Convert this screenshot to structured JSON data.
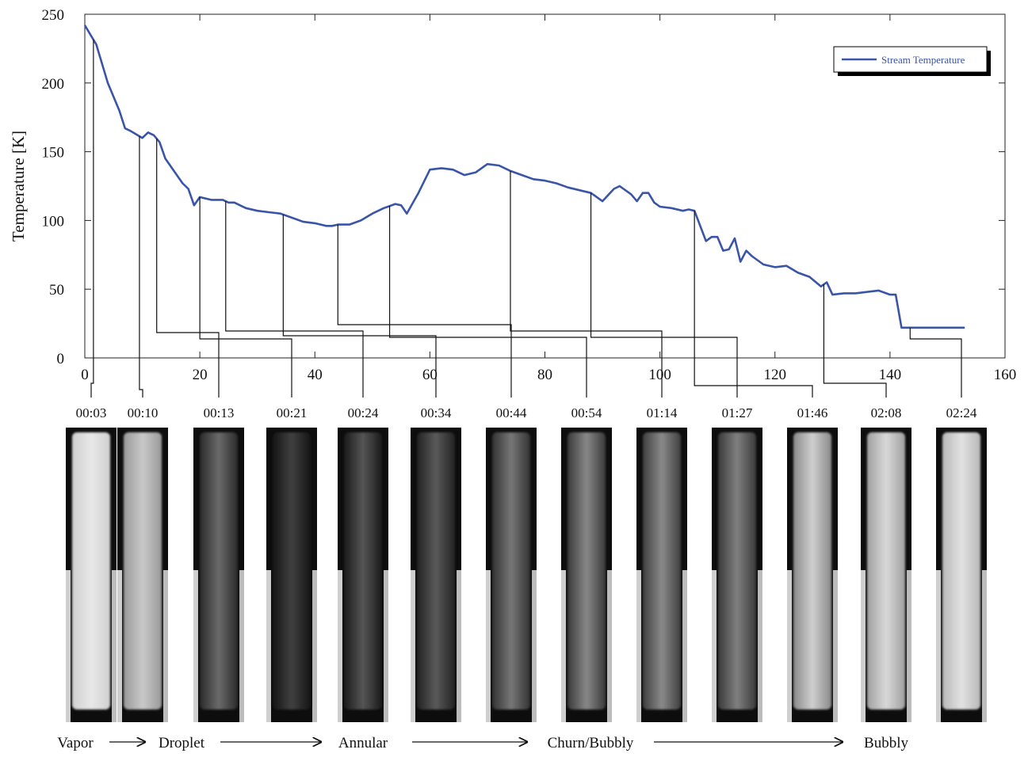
{
  "chart_data": {
    "type": "line",
    "y_label": "Temperature [K]",
    "x": [
      0,
      2,
      4,
      6,
      7,
      8,
      10,
      11,
      12,
      13,
      14,
      16,
      17,
      18,
      19,
      20,
      22,
      24,
      25,
      26,
      27,
      28,
      30,
      32,
      34,
      36,
      38,
      40,
      42,
      43,
      44,
      46,
      48,
      50,
      52,
      54,
      55,
      56,
      58,
      60,
      62,
      64,
      66,
      68,
      70,
      72,
      74,
      76,
      78,
      80,
      82,
      84,
      86,
      88,
      90,
      92,
      93,
      95,
      96,
      97,
      98,
      99,
      100,
      102,
      104,
      105,
      106,
      108,
      109,
      110,
      111,
      112,
      113,
      114,
      115,
      116,
      118,
      120,
      122,
      124,
      126,
      128,
      129,
      130,
      132,
      134,
      136,
      138,
      140,
      141,
      142,
      144,
      150,
      153
    ],
    "series": [
      {
        "name": "Stream Temperature",
        "color": "#3a55a8",
        "values": [
          242,
          228,
          200,
          180,
          167,
          165,
          160,
          164,
          162,
          157,
          145,
          133,
          127,
          123,
          111,
          117,
          115,
          115,
          113,
          113,
          111,
          109,
          107,
          106,
          105,
          102,
          99,
          98,
          96,
          96,
          97,
          97,
          100,
          105,
          109,
          112,
          111,
          105,
          120,
          137,
          138,
          137,
          133,
          135,
          141,
          140,
          136,
          133,
          130,
          129,
          127,
          124,
          122,
          120,
          114,
          123,
          125,
          119,
          114,
          120,
          120,
          113,
          110,
          109,
          107,
          108,
          107,
          85,
          88,
          88,
          78,
          79,
          87,
          70,
          78,
          74,
          68,
          66,
          67,
          62,
          59,
          52,
          55,
          46,
          47,
          47,
          48,
          49,
          46,
          46,
          22,
          22,
          22,
          22
        ]
      }
    ],
    "xlim": [
      0,
      160
    ],
    "xticks": [
      0,
      20,
      40,
      60,
      80,
      100,
      120,
      140,
      160
    ],
    "ylim": [
      0,
      250
    ],
    "yticks": [
      0,
      50,
      100,
      150,
      200,
      250
    ],
    "legend": "upper right",
    "annotations": [
      {
        "label": "00:03",
        "x": 1.5
      },
      {
        "label": "00:10",
        "x": 9.5
      },
      {
        "label": "00:13",
        "x": 12.5
      },
      {
        "label": "00:21",
        "x": 20
      },
      {
        "label": "00:24",
        "x": 24.5
      },
      {
        "label": "00:34",
        "x": 34.5
      },
      {
        "label": "00:44",
        "x": 44
      },
      {
        "label": "00:54",
        "x": 53
      },
      {
        "label": "01:14",
        "x": 74
      },
      {
        "label": "01:27",
        "x": 88
      },
      {
        "label": "01:46",
        "x": 106
      },
      {
        "label": "02:08",
        "x": 128.5
      },
      {
        "label": "02:24",
        "x": 143.5
      }
    ],
    "regimes": [
      "Vapor",
      "Droplet",
      "Annular",
      "Churn/Bubbly",
      "Bubbly"
    ]
  }
}
